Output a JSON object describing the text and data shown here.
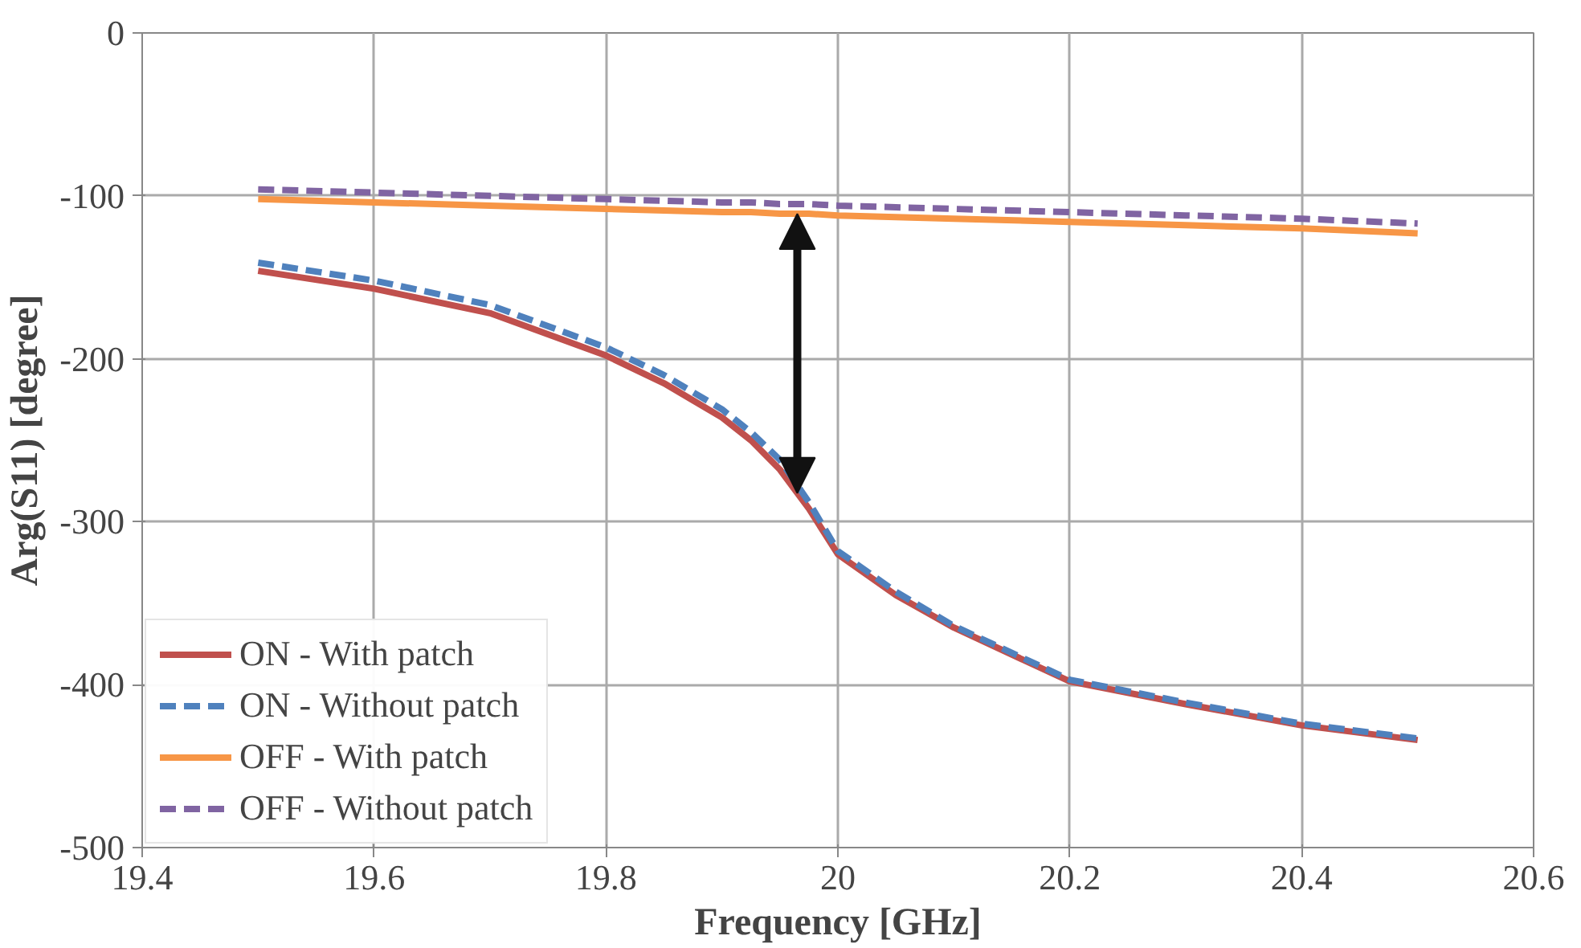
{
  "chart_data": {
    "type": "line",
    "xlabel": "Frequency [GHz]",
    "ylabel": "Arg(S11) [degree]",
    "x": [
      19.5,
      19.6,
      19.7,
      19.8,
      19.85,
      19.9,
      19.925,
      19.95,
      19.975,
      20.0,
      20.05,
      20.1,
      20.2,
      20.3,
      20.4,
      20.5
    ],
    "series": [
      {
        "name": "ON - With patch",
        "color": "#c0504d",
        "line_style": "solid",
        "values": [
          -146,
          -157,
          -172,
          -198,
          -215,
          -236,
          -250,
          -268,
          -292,
          -320,
          -345,
          -365,
          -398,
          -412,
          -425,
          -434
        ]
      },
      {
        "name": "ON - Without patch",
        "color": "#4f81bd",
        "line_style": "dashed",
        "values": [
          -141,
          -152,
          -167,
          -193,
          -210,
          -231,
          -245,
          -262,
          -288,
          -318,
          -343,
          -364,
          -397,
          -411,
          -424,
          -433
        ]
      },
      {
        "name": "OFF - With patch",
        "color": "#f79646",
        "line_style": "solid",
        "values": [
          -102,
          -104,
          -106,
          -108,
          -109,
          -110,
          -110,
          -111,
          -111,
          -112,
          -113,
          -114,
          -116,
          -118,
          -120,
          -123
        ]
      },
      {
        "name": "OFF - Without patch",
        "color": "#8064a2",
        "line_style": "dashed",
        "values": [
          -96,
          -98,
          -100,
          -102,
          -103,
          -104,
          -104,
          -105,
          -105,
          -106,
          -107,
          -108,
          -110,
          -112,
          -114,
          -117
        ]
      }
    ],
    "xlim": [
      19.4,
      20.6
    ],
    "xticks": [
      19.4,
      19.6,
      19.8,
      20,
      20.2,
      20.4,
      20.6
    ],
    "ylim": [
      -500,
      0
    ],
    "yticks": [
      -500,
      -400,
      -300,
      -200,
      -100,
      0
    ],
    "grid": true,
    "legend": "bottom left"
  }
}
